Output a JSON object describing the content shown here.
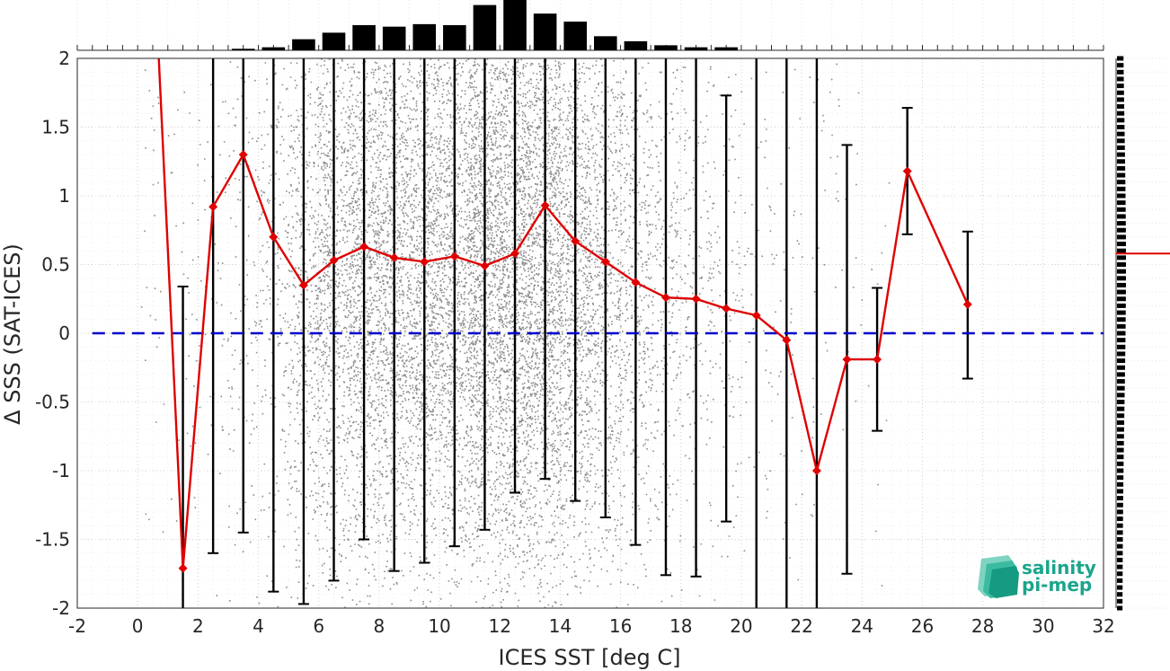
{
  "chart_data": {
    "type": "scatter",
    "xlabel": "ICES SST [deg C]",
    "ylabel": "Δ SSS (SAT-ICES)",
    "xlim": [
      -2,
      32
    ],
    "ylim": [
      -2,
      2
    ],
    "xticks": [
      -2,
      0,
      2,
      4,
      6,
      8,
      10,
      12,
      14,
      16,
      18,
      20,
      22,
      24,
      26,
      28,
      30,
      32
    ],
    "yticks": [
      -2,
      -1.5,
      -1,
      -0.5,
      0,
      0.5,
      1,
      1.5,
      2
    ],
    "grid": true,
    "zero_line": {
      "y": 0,
      "color": "#0000cc",
      "style": "dashed"
    },
    "scatter_color": "#808080",
    "scatter_density_by_x": [
      {
        "x": 0.5,
        "weight": 0.02
      },
      {
        "x": 1.5,
        "weight": 0.03
      },
      {
        "x": 2.5,
        "weight": 0.04
      },
      {
        "x": 3.5,
        "weight": 0.08
      },
      {
        "x": 4.5,
        "weight": 0.15
      },
      {
        "x": 5.5,
        "weight": 0.35
      },
      {
        "x": 6.5,
        "weight": 0.55
      },
      {
        "x": 7.5,
        "weight": 0.7
      },
      {
        "x": 8.5,
        "weight": 0.68
      },
      {
        "x": 9.5,
        "weight": 0.75
      },
      {
        "x": 10.5,
        "weight": 0.72
      },
      {
        "x": 11.5,
        "weight": 0.95
      },
      {
        "x": 12.5,
        "weight": 1.0
      },
      {
        "x": 13.5,
        "weight": 0.88
      },
      {
        "x": 14.5,
        "weight": 0.7
      },
      {
        "x": 15.5,
        "weight": 0.45
      },
      {
        "x": 16.5,
        "weight": 0.32
      },
      {
        "x": 17.5,
        "weight": 0.18
      },
      {
        "x": 18.5,
        "weight": 0.12
      },
      {
        "x": 19.5,
        "weight": 0.08
      },
      {
        "x": 20.5,
        "weight": 0.04
      },
      {
        "x": 21.5,
        "weight": 0.03
      },
      {
        "x": 22.5,
        "weight": 0.02
      },
      {
        "x": 23.5,
        "weight": 0.015
      },
      {
        "x": 24.5,
        "weight": 0.01
      }
    ],
    "mean_series": {
      "color": "#e00000",
      "points": [
        {
          "x": 0.7,
          "y": 2.0
        },
        {
          "x": 1.5,
          "y": -1.71
        },
        {
          "x": 2.5,
          "y": 0.92
        },
        {
          "x": 3.5,
          "y": 1.3
        },
        {
          "x": 4.5,
          "y": 0.7
        },
        {
          "x": 5.5,
          "y": 0.35
        },
        {
          "x": 6.5,
          "y": 0.53
        },
        {
          "x": 7.5,
          "y": 0.63
        },
        {
          "x": 8.5,
          "y": 0.55
        },
        {
          "x": 9.5,
          "y": 0.52
        },
        {
          "x": 10.5,
          "y": 0.56
        },
        {
          "x": 11.5,
          "y": 0.49
        },
        {
          "x": 12.5,
          "y": 0.58
        },
        {
          "x": 13.5,
          "y": 0.93
        },
        {
          "x": 14.5,
          "y": 0.67
        },
        {
          "x": 15.5,
          "y": 0.52
        },
        {
          "x": 16.5,
          "y": 0.37
        },
        {
          "x": 17.5,
          "y": 0.26
        },
        {
          "x": 18.5,
          "y": 0.25
        },
        {
          "x": 19.5,
          "y": 0.18
        },
        {
          "x": 20.5,
          "y": 0.13
        },
        {
          "x": 21.5,
          "y": -0.05
        },
        {
          "x": 22.5,
          "y": -1.0
        },
        {
          "x": 23.5,
          "y": -0.19
        },
        {
          "x": 24.5,
          "y": -0.19
        },
        {
          "x": 25.5,
          "y": 1.18
        },
        {
          "x": 27.5,
          "y": 0.21
        }
      ]
    },
    "error_bars": [
      {
        "x": 1.5,
        "low": -2.0,
        "high": 0.34
      },
      {
        "x": 2.5,
        "low": -1.6,
        "high": 2.0
      },
      {
        "x": 3.5,
        "low": -1.45,
        "high": 2.0
      },
      {
        "x": 4.5,
        "low": -1.88,
        "high": 2.0
      },
      {
        "x": 5.5,
        "low": -1.97,
        "high": 2.0
      },
      {
        "x": 6.5,
        "low": -1.8,
        "high": 2.0
      },
      {
        "x": 7.5,
        "low": -1.5,
        "high": 2.0
      },
      {
        "x": 8.5,
        "low": -1.73,
        "high": 2.0
      },
      {
        "x": 9.5,
        "low": -1.67,
        "high": 2.0
      },
      {
        "x": 10.5,
        "low": -1.55,
        "high": 2.0
      },
      {
        "x": 11.5,
        "low": -1.43,
        "high": 2.0
      },
      {
        "x": 12.5,
        "low": -1.16,
        "high": 2.0
      },
      {
        "x": 13.5,
        "low": -1.06,
        "high": 2.0
      },
      {
        "x": 14.5,
        "low": -1.22,
        "high": 2.0
      },
      {
        "x": 15.5,
        "low": -1.34,
        "high": 2.0
      },
      {
        "x": 16.5,
        "low": -1.54,
        "high": 2.0
      },
      {
        "x": 17.5,
        "low": -1.76,
        "high": 2.0
      },
      {
        "x": 18.5,
        "low": -1.77,
        "high": 2.0
      },
      {
        "x": 19.5,
        "low": -1.37,
        "high": 1.73
      },
      {
        "x": 20.5,
        "low": -2.0,
        "high": 2.0
      },
      {
        "x": 21.5,
        "low": -2.0,
        "high": 2.0
      },
      {
        "x": 22.5,
        "low": -2.0,
        "high": 2.0
      },
      {
        "x": 23.5,
        "low": -1.75,
        "high": 1.37
      },
      {
        "x": 24.5,
        "low": -0.71,
        "high": 0.33
      },
      {
        "x": 25.5,
        "low": 0.72,
        "high": 1.64
      },
      {
        "x": 27.5,
        "low": -0.33,
        "high": 0.74
      }
    ],
    "top_histogram": {
      "bins": [
        {
          "x": 3.5,
          "value": 0.03
        },
        {
          "x": 4.5,
          "value": 0.06
        },
        {
          "x": 5.5,
          "value": 0.22
        },
        {
          "x": 6.5,
          "value": 0.35
        },
        {
          "x": 7.5,
          "value": 0.5
        },
        {
          "x": 8.5,
          "value": 0.47
        },
        {
          "x": 9.5,
          "value": 0.52
        },
        {
          "x": 10.5,
          "value": 0.5
        },
        {
          "x": 11.5,
          "value": 0.9
        },
        {
          "x": 12.5,
          "value": 1.0
        },
        {
          "x": 13.5,
          "value": 0.73
        },
        {
          "x": 14.5,
          "value": 0.57
        },
        {
          "x": 15.5,
          "value": 0.28
        },
        {
          "x": 16.5,
          "value": 0.18
        },
        {
          "x": 17.5,
          "value": 0.1
        },
        {
          "x": 18.5,
          "value": 0.06
        },
        {
          "x": 19.5,
          "value": 0.06
        }
      ]
    },
    "right_histogram": {
      "mean_line_y": 0.58,
      "mean_line_color": "#e00000"
    }
  },
  "logo": {
    "line1": "salinity",
    "line2": "pi-mep",
    "color": "#1aa58c"
  }
}
